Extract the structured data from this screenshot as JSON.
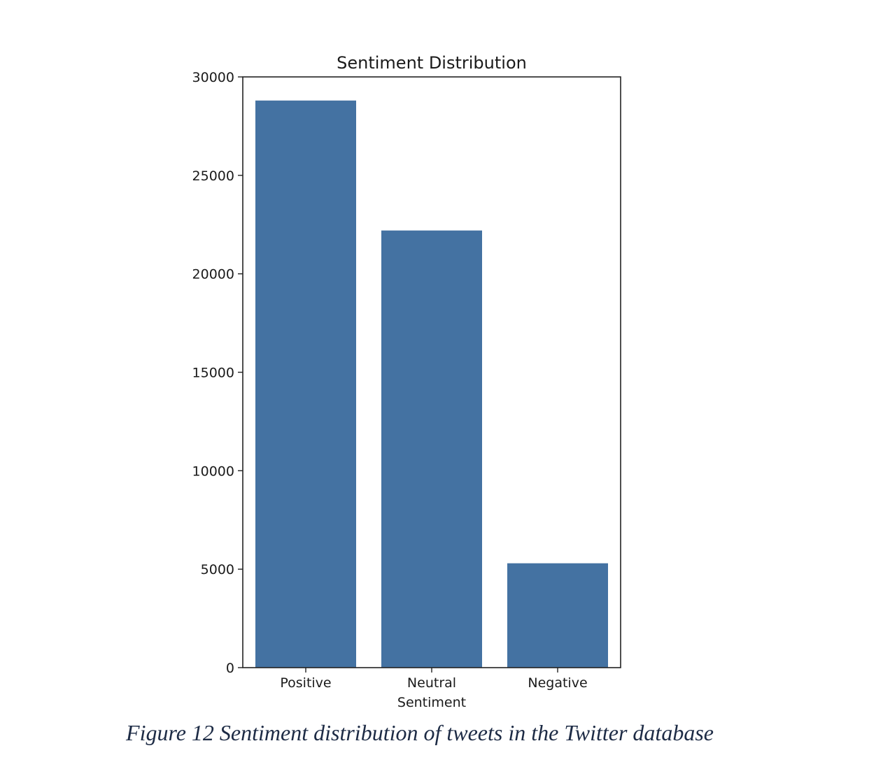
{
  "chart_data": {
    "type": "bar",
    "title": "Sentiment Distribution",
    "xlabel": "Sentiment",
    "ylabel": "",
    "categories": [
      "Positive",
      "Neutral",
      "Negative"
    ],
    "values": [
      28800,
      22200,
      5300
    ],
    "ylim": [
      0,
      30000
    ],
    "yticks": [
      0,
      5000,
      10000,
      15000,
      20000,
      25000,
      30000
    ],
    "ytick_labels": [
      "0",
      "5000",
      "10000",
      "15000",
      "20000",
      "25000",
      "30000"
    ],
    "bar_color": "#4472a2",
    "grid": false,
    "legend": false
  },
  "caption": "Figure 12 Sentiment distribution of tweets in the Twitter database"
}
